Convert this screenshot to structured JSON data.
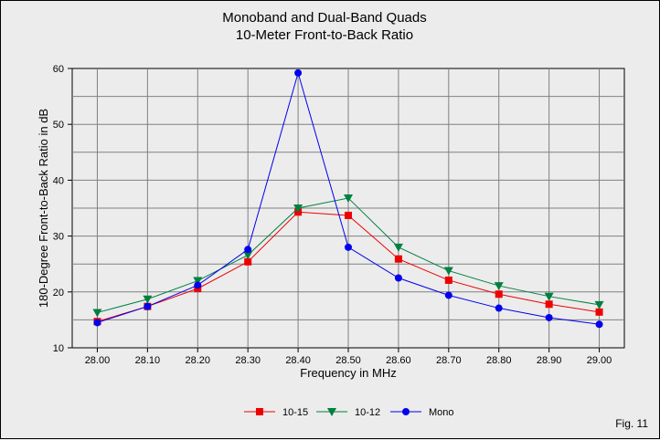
{
  "chart_data": {
    "type": "line",
    "title": "Monoband and Dual-Band Quads",
    "subtitle": "10-Meter Front-to-Back Ratio",
    "xlabel": "Frequency in MHz",
    "ylabel": "180-Degree Front-to-Back Ratio in dB",
    "x": [
      "28.00",
      "28.10",
      "28.20",
      "28.30",
      "28.40",
      "28.50",
      "28.60",
      "28.70",
      "28.80",
      "28.90",
      "29.00"
    ],
    "ylim": [
      10,
      60
    ],
    "yticks": [
      "10",
      "20",
      "30",
      "40",
      "50",
      "60"
    ],
    "grid": true,
    "legend_position": "bottom-center",
    "series": [
      {
        "name": "10-15",
        "color": "#ee0000",
        "marker": "square",
        "values": [
          14.7,
          17.4,
          20.6,
          25.4,
          34.3,
          33.7,
          25.9,
          22.1,
          19.6,
          17.8,
          16.4
        ]
      },
      {
        "name": "10-12",
        "color": "#008040",
        "marker": "triangle-down",
        "values": [
          16.3,
          18.7,
          22.0,
          26.6,
          35.0,
          36.8,
          28.0,
          23.8,
          21.1,
          19.2,
          17.7
        ]
      },
      {
        "name": "Mono",
        "color": "#0000ee",
        "marker": "circle",
        "values": [
          14.5,
          17.4,
          21.2,
          27.6,
          59.2,
          28.0,
          22.5,
          19.4,
          17.1,
          15.4,
          14.2
        ]
      }
    ],
    "annotation": "Fig. 11"
  }
}
